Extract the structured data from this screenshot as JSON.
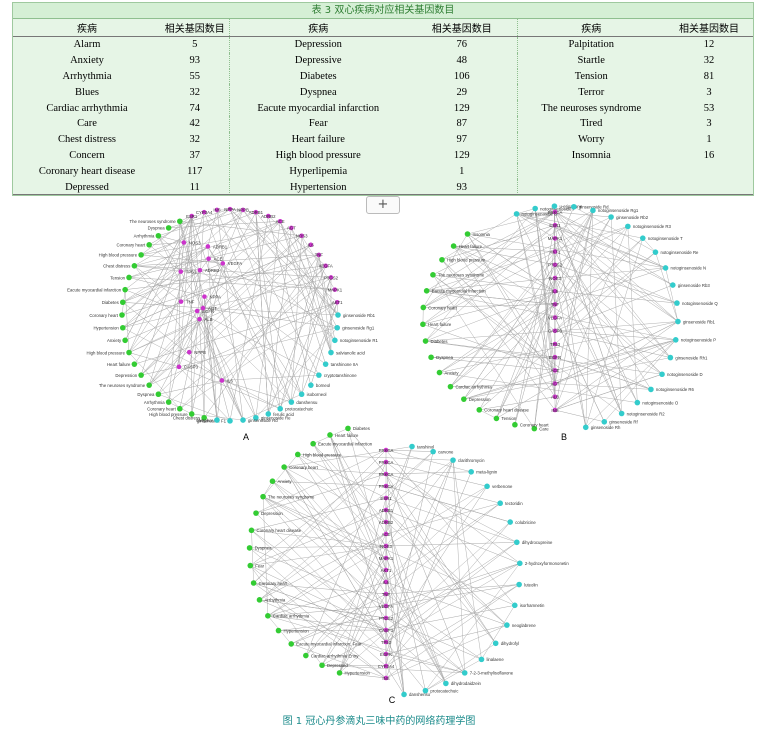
{
  "table": {
    "title": "表 3 双心疾病对应相关基因数目",
    "header_disease": "疾病",
    "header_genes": "相关基因数目",
    "col1": [
      {
        "d": "Alarm",
        "n": "5"
      },
      {
        "d": "Anxiety",
        "n": "93"
      },
      {
        "d": "Arrhythmia",
        "n": "55"
      },
      {
        "d": "Blues",
        "n": "32"
      },
      {
        "d": "Cardiac arrhythmia",
        "n": "74"
      },
      {
        "d": "Care",
        "n": "42"
      },
      {
        "d": "Chest distress",
        "n": "32"
      },
      {
        "d": "Concern",
        "n": "37"
      },
      {
        "d": "Coronary heart disease",
        "n": "117"
      },
      {
        "d": "Depressed",
        "n": "11"
      }
    ],
    "col2": [
      {
        "d": "Depression",
        "n": "76"
      },
      {
        "d": "Depressive",
        "n": "48"
      },
      {
        "d": "Diabetes",
        "n": "106"
      },
      {
        "d": "Dyspnea",
        "n": "29"
      },
      {
        "d": "Eacute myocardial infarction",
        "n": "129"
      },
      {
        "d": "Fear",
        "n": "87"
      },
      {
        "d": "Heart failure",
        "n": "97"
      },
      {
        "d": "High blood pressure",
        "n": "129"
      },
      {
        "d": "Hyperlipemia",
        "n": "1"
      },
      {
        "d": "Hypertension",
        "n": "93"
      }
    ],
    "col3": [
      {
        "d": "Palpitation",
        "n": "12"
      },
      {
        "d": "Startle",
        "n": "32"
      },
      {
        "d": "Tension",
        "n": "81"
      },
      {
        "d": "Terror",
        "n": "3"
      },
      {
        "d": "The neuroses syndrome",
        "n": "53"
      },
      {
        "d": "Tired",
        "n": "3"
      },
      {
        "d": "Worry",
        "n": "1"
      },
      {
        "d": "Insomnia",
        "n": "16"
      },
      {
        "d": "",
        "n": ""
      },
      {
        "d": "",
        "n": ""
      }
    ]
  },
  "expand_button": "+",
  "panels": {
    "A": {
      "label": "A",
      "disease_nodes": [
        "Chest distress",
        "High blood pressure",
        "Coronary heart",
        "Arrhythmia",
        "Dyspnea",
        "The neuroses syndrome",
        "Depression",
        "Heart failure",
        "High blood pressure",
        "Anxiety",
        "Hypertension",
        "Coronary heart",
        "Diabetes",
        "Eacute myocardial infarction",
        "Tension"
      ],
      "gene_nodes": [
        "NPPA",
        "NPPB",
        "ADRB1",
        "ADRB2",
        "ACE",
        "AGT",
        "NOS3",
        "IL6",
        "TNF",
        "VEGFA",
        "PTGS2",
        "MAPK1",
        "AKT1",
        "ESR1",
        "CYP3A4",
        "INS",
        "ALB",
        "TP53",
        "EGFR",
        "CASP3"
      ],
      "compound_nodes": [
        "ginsenoside Rb1",
        "ginsenoside Rg1",
        "notoginsenoside R1",
        "salvianolic acid",
        "tanshinone IIA",
        "cryptotanshinone",
        "borneol",
        "isoborneol",
        "danshensu",
        "protocatechuic",
        "ferulic acid",
        "ginsenoside Re",
        "ginsenoside Rd",
        "ginsenoside F1",
        "camphor",
        "linalool"
      ]
    },
    "B": {
      "label": "B",
      "compound_nodes": [
        "notoginsenoside G",
        "notoginsenoside I",
        "u-erisanone",
        "ginsenoside Rd",
        "notoginsenoside Rg1",
        "ginsenoside Rb2",
        "notoginsenoside R3",
        "notoginsenoside T",
        "notoginsenoside Re",
        "notoginsenoside N",
        "ginsenoside Rb3",
        "notoginsenoside Q",
        "ginsenoside Rb1",
        "notoginsenoside P",
        "ginsenoside Rh1",
        "notoginsenoside D",
        "notoginsenoside R6",
        "notoginsenoside O",
        "notoginsenoside R2",
        "ginsenoside Rf",
        "ginsenoside Rh"
      ],
      "disease_nodes": [
        "Care",
        "Coronary heart",
        "Tension",
        "Coronary heart disease",
        "Depression",
        "Cardiac arrhythmia",
        "Anxiety",
        "Dyspnea",
        "Diabetes",
        "Heart failure",
        "Coronary heart",
        "Eacute myocardial infarction",
        "The neuroses syndrome",
        "High blood pressure",
        "Heart failure",
        "Insomnia"
      ],
      "gene_nodes": [
        "PRKCA",
        "ESR1",
        "MAPK1",
        "AKT1",
        "PTGS2",
        "NOS3",
        "IL6",
        "TNF",
        "VEGFA",
        "CASP3",
        "TP53",
        "EGFR",
        "ACE",
        "AGT",
        "ALB",
        "INS"
      ]
    },
    "C": {
      "label": "C",
      "disease_nodes": [
        "Hypertension",
        "Depressed",
        "Cardiac arrhythmia Entry",
        "Eacute myocardial infarction, Fear",
        "Hypertension",
        "Cardiac arrhythmia",
        "Arrhythmia",
        "Coronary heart",
        "Fear",
        "Dyspnea",
        "Coronary heart disease",
        "Depression",
        "The neuroses syndrome",
        "Anxiety",
        "Coronary heart",
        "High blood pressure",
        "Eacute myocardial infarction",
        "Heart failure",
        "Diabetes"
      ],
      "gene_nodes": [
        "PRKCA",
        "PRKCA",
        "PRKCA",
        "PRKCA",
        "ESR1",
        "ADRB1",
        "ADRB2",
        "ACE",
        "NOS3",
        "MAPK1",
        "AKT1",
        "IL6",
        "TNF",
        "VEGFA",
        "PTGS2",
        "CASP3",
        "TP53",
        "EGFR",
        "CYP3A4",
        "INS"
      ],
      "compound_nodes": [
        "tanshinol",
        "carvone",
        "clarithromycin",
        "meta-lignin",
        "verbenone",
        "tectoridin",
        "colubricine",
        "dihydrocupreine",
        "2-hydroxyformononetin",
        "luteolin",
        "isorhamnetin",
        "neoglabrene",
        "dihydrofyl",
        "linalaene",
        "7-2-3-methylisoflavone",
        "dihydrodaidzein",
        "protocatechuic",
        "danshensu"
      ]
    }
  },
  "caption": "图 1 冠心丹参滴丸三味中药的网络药理学图",
  "colors": {
    "disease": "#33cc33",
    "gene": "#cc33cc",
    "compound": "#33cccc",
    "edge": "#a8a8a8",
    "caption": "#1a8a8a"
  }
}
